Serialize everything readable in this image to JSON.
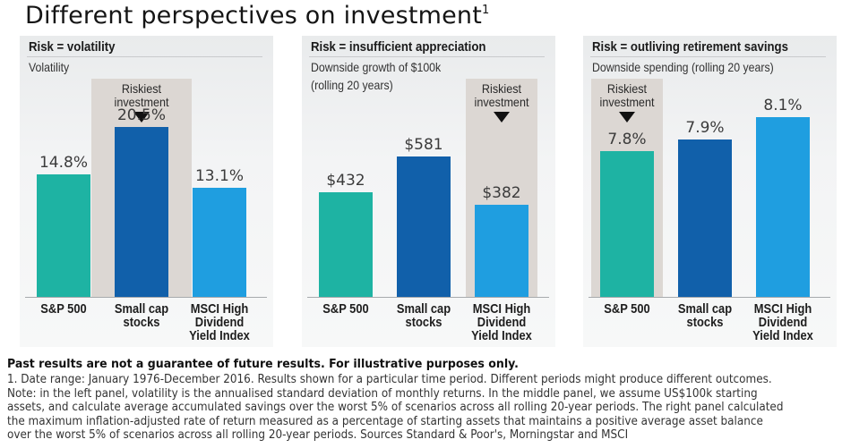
{
  "title": "Different perspectives on investment",
  "title_sup": "1",
  "colors": {
    "sp500": "#1eb3a3",
    "small_cap": "#1160aa",
    "msci": "#1f9ee0",
    "highlight_bg": "#dcd7d3"
  },
  "chart_data": [
    {
      "type": "bar",
      "title": "Risk = volatility",
      "subtitle": "Volatility",
      "categories": [
        "S&P 500",
        "Small cap\nstocks",
        "MSCI High\nDividend\nYield Index"
      ],
      "values": [
        14.8,
        20.5,
        13.1
      ],
      "value_labels": [
        "14.8%",
        "20.5%",
        "13.1%"
      ],
      "unit": "%",
      "highlight_index": 1,
      "highlight_label": [
        "Riskiest",
        "investment"
      ],
      "ylim": [
        0,
        25
      ],
      "grid": false
    },
    {
      "type": "bar",
      "title": "Risk = insufficient appreciation",
      "subtitle": [
        "Downside growth of $100k",
        "(rolling 20 years)"
      ],
      "categories": [
        "S&P 500",
        "Small cap\nstocks",
        "MSCI High\nDividend\nYield Index"
      ],
      "values": [
        432,
        581,
        382
      ],
      "value_labels": [
        "$432",
        "$581",
        "$382"
      ],
      "unit": "$k",
      "highlight_index": 2,
      "highlight_label": [
        "Riskiest",
        "investment"
      ],
      "ylim": [
        0,
        860
      ],
      "grid": false
    },
    {
      "type": "bar",
      "title": "Risk = outliving retirement savings",
      "subtitle": "Downside spending (rolling 20 years)",
      "categories": [
        "S&P 500",
        "Small cap\nstocks",
        "MSCI High\nDividend\nYield Index"
      ],
      "values": [
        7.8,
        7.9,
        8.1
      ],
      "value_labels": [
        "7.8%",
        "7.9%",
        "8.1%"
      ],
      "unit": "%",
      "highlight_index": 0,
      "highlight_label": [
        "Riskiest",
        "investment"
      ],
      "ylim": [
        6.5,
        8.35
      ],
      "grid": false
    }
  ],
  "footer": {
    "disclaimer": "Past results are not a guarantee of future results. For illustrative purposes only.",
    "note_lines": [
      "1. Date range: January 1976-December 2016. Results shown for a particular time period. Different periods might produce different outcomes.",
      "Note: in the left panel, volatility is the annualised standard deviation of monthly returns. In the middle panel, we assume US$100k starting",
      "assets, and calculate average accumulated savings over the worst 5% of scenarios across all rolling 20-year periods. The right panel calculated",
      "the maximum inflation-adjusted rate of return measured as a percentage of starting assets that maintains a positive average asset balance",
      "over the worst 5% of scenarios across all rolling 20-year periods. Sources Standard & Poor's, Morningstar and MSCI"
    ]
  }
}
